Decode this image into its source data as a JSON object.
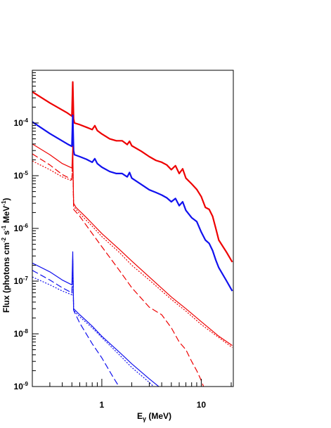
{
  "chart_data": {
    "type": "line",
    "xscale": "log",
    "yscale": "log",
    "xlim": [
      0.2,
      21
    ],
    "ylim": [
      1e-09,
      0.001
    ],
    "grid": false,
    "legend": "none",
    "xlabel_parts": {
      "main": "E",
      "sub": "γ",
      "rest": " (MeV)"
    },
    "ylabel_parts": {
      "a": "Flux (photons cm",
      "s1": "-2",
      "b": " s",
      "s2": "-1",
      "c": " MeV",
      "s3": "-1",
      "d": ")"
    },
    "x_tick_labels": [
      {
        "x": 1,
        "label": "1"
      },
      {
        "x": 10,
        "label": "10"
      }
    ],
    "y_tick_labels": [
      {
        "y": 1e-09,
        "base": "10",
        "exp": "-9"
      },
      {
        "y": 1e-08,
        "base": "10",
        "exp": "-8"
      },
      {
        "y": 1e-07,
        "base": "10",
        "exp": "-7"
      },
      {
        "y": 1e-06,
        "base": "10",
        "exp": "-6"
      },
      {
        "y": 1e-05,
        "base": "10",
        "exp": "-5"
      },
      {
        "y": 0.0001,
        "base": "10",
        "exp": "-4"
      }
    ],
    "series": [
      {
        "color": "#ee0000",
        "style": "solid",
        "width": 2.2,
        "points": [
          [
            0.2,
            0.00039
          ],
          [
            0.3,
            0.00024
          ],
          [
            0.45,
            0.000155
          ],
          [
            0.5,
            0.000135
          ],
          [
            0.51,
            0.0006
          ],
          [
            0.52,
            0.00012
          ],
          [
            0.53,
            0.0001
          ],
          [
            0.6,
            9.3e-05
          ],
          [
            0.7,
            8.3e-05
          ],
          [
            0.8,
            7.5e-05
          ],
          [
            0.85,
            8.9e-05
          ],
          [
            0.9,
            7.2e-05
          ],
          [
            1.0,
            6.2e-05
          ],
          [
            1.2,
            5e-05
          ],
          [
            1.4,
            4.6e-05
          ],
          [
            1.6,
            4.6e-05
          ],
          [
            1.8,
            3.9e-05
          ],
          [
            1.9,
            4.5e-05
          ],
          [
            2.0,
            3.7e-05
          ],
          [
            2.5,
            2.9e-05
          ],
          [
            3.0,
            2.3e-05
          ],
          [
            3.5,
            1.95e-05
          ],
          [
            4.0,
            1.8e-05
          ],
          [
            4.5,
            1.6e-05
          ],
          [
            5.0,
            1.3e-05
          ],
          [
            5.5,
            1.55e-05
          ],
          [
            6.0,
            1.1e-05
          ],
          [
            6.5,
            1.35e-05
          ],
          [
            7.0,
            9e-06
          ],
          [
            8.0,
            7e-06
          ],
          [
            9.0,
            5.5e-06
          ],
          [
            10.0,
            4e-06
          ],
          [
            11.0,
            2.5e-06
          ],
          [
            12.0,
            2.3e-06
          ],
          [
            13.0,
            1.7e-06
          ],
          [
            14.0,
            1e-06
          ],
          [
            15.0,
            6e-07
          ],
          [
            18.0,
            3.5e-07
          ],
          [
            20.5,
            2.3e-07
          ]
        ]
      },
      {
        "color": "#1111ee",
        "style": "solid",
        "width": 2.2,
        "points": [
          [
            0.2,
            0.000105
          ],
          [
            0.3,
            6.3e-05
          ],
          [
            0.45,
            4e-05
          ],
          [
            0.5,
            3.6e-05
          ],
          [
            0.51,
            0.00014
          ],
          [
            0.52,
            3e-05
          ],
          [
            0.53,
            2.5e-05
          ],
          [
            0.6,
            2.3e-05
          ],
          [
            0.7,
            2.05e-05
          ],
          [
            0.8,
            1.8e-05
          ],
          [
            0.85,
            2.1e-05
          ],
          [
            0.9,
            1.7e-05
          ],
          [
            1.0,
            1.45e-05
          ],
          [
            1.2,
            1.2e-05
          ],
          [
            1.4,
            1.1e-05
          ],
          [
            1.6,
            1.1e-05
          ],
          [
            1.8,
            9.5e-06
          ],
          [
            1.9,
            1.15e-05
          ],
          [
            2.0,
            9e-06
          ],
          [
            2.5,
            6.8e-06
          ],
          [
            3.0,
            5.4e-06
          ],
          [
            3.5,
            4.8e-06
          ],
          [
            4.0,
            4.3e-06
          ],
          [
            4.5,
            3.8e-06
          ],
          [
            5.0,
            3.2e-06
          ],
          [
            5.5,
            3.7e-06
          ],
          [
            6.0,
            2.7e-06
          ],
          [
            6.5,
            3.2e-06
          ],
          [
            7.0,
            2.2e-06
          ],
          [
            8.0,
            1.6e-06
          ],
          [
            9.0,
            1.35e-06
          ],
          [
            10.0,
            8.5e-07
          ],
          [
            11.0,
            6e-07
          ],
          [
            12.0,
            5.2e-07
          ],
          [
            13.0,
            3.8e-07
          ],
          [
            14.0,
            2.5e-07
          ],
          [
            15.0,
            1.8e-07
          ],
          [
            18.0,
            1e-07
          ],
          [
            20.5,
            6.5e-08
          ]
        ]
      },
      {
        "color": "#ee0000",
        "style": "solid",
        "width": 1.2,
        "points": [
          [
            0.2,
            4e-05
          ],
          [
            0.3,
            2.5e-05
          ],
          [
            0.4,
            1.7e-05
          ],
          [
            0.5,
            1.4e-05
          ],
          [
            0.51,
            3.6e-05
          ],
          [
            0.52,
            3e-06
          ],
          [
            0.55,
            2.5e-06
          ],
          [
            0.7,
            1.6e-06
          ],
          [
            1.0,
            8e-07
          ],
          [
            1.5,
            4e-07
          ],
          [
            2.0,
            2.4e-07
          ],
          [
            3.0,
            1.2e-07
          ],
          [
            5.0,
            5e-08
          ],
          [
            7.0,
            3e-08
          ],
          [
            10.0,
            1.7e-08
          ],
          [
            15.0,
            9e-09
          ],
          [
            20.5,
            6e-09
          ]
        ]
      },
      {
        "color": "#ee0000",
        "style": "dashed",
        "width": 1.2,
        "points": [
          [
            0.2,
            2.6e-05
          ],
          [
            0.3,
            1.6e-05
          ],
          [
            0.4,
            1.05e-05
          ],
          [
            0.5,
            8.5e-06
          ],
          [
            0.51,
            2.6e-05
          ],
          [
            0.52,
            2.3e-06
          ],
          [
            0.6,
            1.7e-06
          ],
          [
            0.8,
            8e-07
          ],
          [
            1.0,
            4.5e-07
          ],
          [
            1.5,
            1.6e-07
          ],
          [
            2.0,
            7.5e-08
          ],
          [
            3.0,
            3.2e-08
          ],
          [
            4.0,
            2.3e-08
          ],
          [
            5.0,
            1.3e-08
          ],
          [
            6.0,
            7e-09
          ],
          [
            7.0,
            5e-09
          ],
          [
            8.0,
            3e-09
          ],
          [
            9.0,
            2e-09
          ],
          [
            10.0,
            1.3e-09
          ],
          [
            11.0,
            8e-10
          ]
        ]
      },
      {
        "color": "#ee0000",
        "style": "dotted",
        "width": 1.2,
        "points": [
          [
            0.2,
            1.9e-05
          ],
          [
            0.3,
            1.3e-05
          ],
          [
            0.4,
            9.5e-06
          ],
          [
            0.5,
            8e-06
          ],
          [
            0.51,
            2.5e-05
          ],
          [
            0.52,
            2.6e-06
          ],
          [
            0.6,
            1.9e-06
          ],
          [
            0.8,
            1.1e-06
          ],
          [
            1.0,
            7e-07
          ],
          [
            1.5,
            3.5e-07
          ],
          [
            2.0,
            2e-07
          ],
          [
            3.0,
            1.05e-07
          ],
          [
            5.0,
            4.5e-08
          ],
          [
            7.0,
            2.7e-08
          ],
          [
            10.0,
            1.5e-08
          ],
          [
            15.0,
            8.5e-09
          ],
          [
            20.5,
            5.5e-09
          ]
        ]
      },
      {
        "color": "#1111ee",
        "style": "solid",
        "width": 1.2,
        "points": [
          [
            0.2,
            2.2e-07
          ],
          [
            0.3,
            1.5e-07
          ],
          [
            0.4,
            1.05e-07
          ],
          [
            0.5,
            8.5e-08
          ],
          [
            0.51,
            3.6e-07
          ],
          [
            0.52,
            3e-08
          ],
          [
            0.6,
            2.3e-08
          ],
          [
            0.8,
            1.4e-08
          ],
          [
            1.0,
            9e-09
          ],
          [
            1.5,
            4.5e-09
          ],
          [
            2.0,
            2.7e-09
          ],
          [
            3.0,
            1.4e-09
          ],
          [
            4.0,
            9e-10
          ]
        ]
      },
      {
        "color": "#1111ee",
        "style": "dashed",
        "width": 1.2,
        "points": [
          [
            0.2,
            1.6e-07
          ],
          [
            0.3,
            1.05e-07
          ],
          [
            0.4,
            7.5e-08
          ],
          [
            0.5,
            6e-08
          ],
          [
            0.51,
            2.6e-07
          ],
          [
            0.52,
            2.8e-08
          ],
          [
            0.6,
            1.6e-08
          ],
          [
            0.8,
            6.5e-09
          ],
          [
            1.0,
            3.5e-09
          ],
          [
            1.3,
            1.5e-09
          ],
          [
            1.6,
            8e-10
          ]
        ]
      },
      {
        "color": "#1111ee",
        "style": "dotted",
        "width": 1.2,
        "points": [
          [
            0.2,
            1.2e-07
          ],
          [
            0.3,
            8.5e-08
          ],
          [
            0.4,
            6.5e-08
          ],
          [
            0.5,
            5.5e-08
          ],
          [
            0.51,
            2.5e-07
          ],
          [
            0.52,
            2.8e-08
          ],
          [
            0.6,
            2.1e-08
          ],
          [
            0.8,
            1.3e-08
          ],
          [
            1.0,
            8.5e-09
          ],
          [
            1.5,
            4e-09
          ],
          [
            2.0,
            2.3e-09
          ],
          [
            3.0,
            1.2e-09
          ],
          [
            3.5,
            9e-10
          ]
        ]
      }
    ]
  }
}
